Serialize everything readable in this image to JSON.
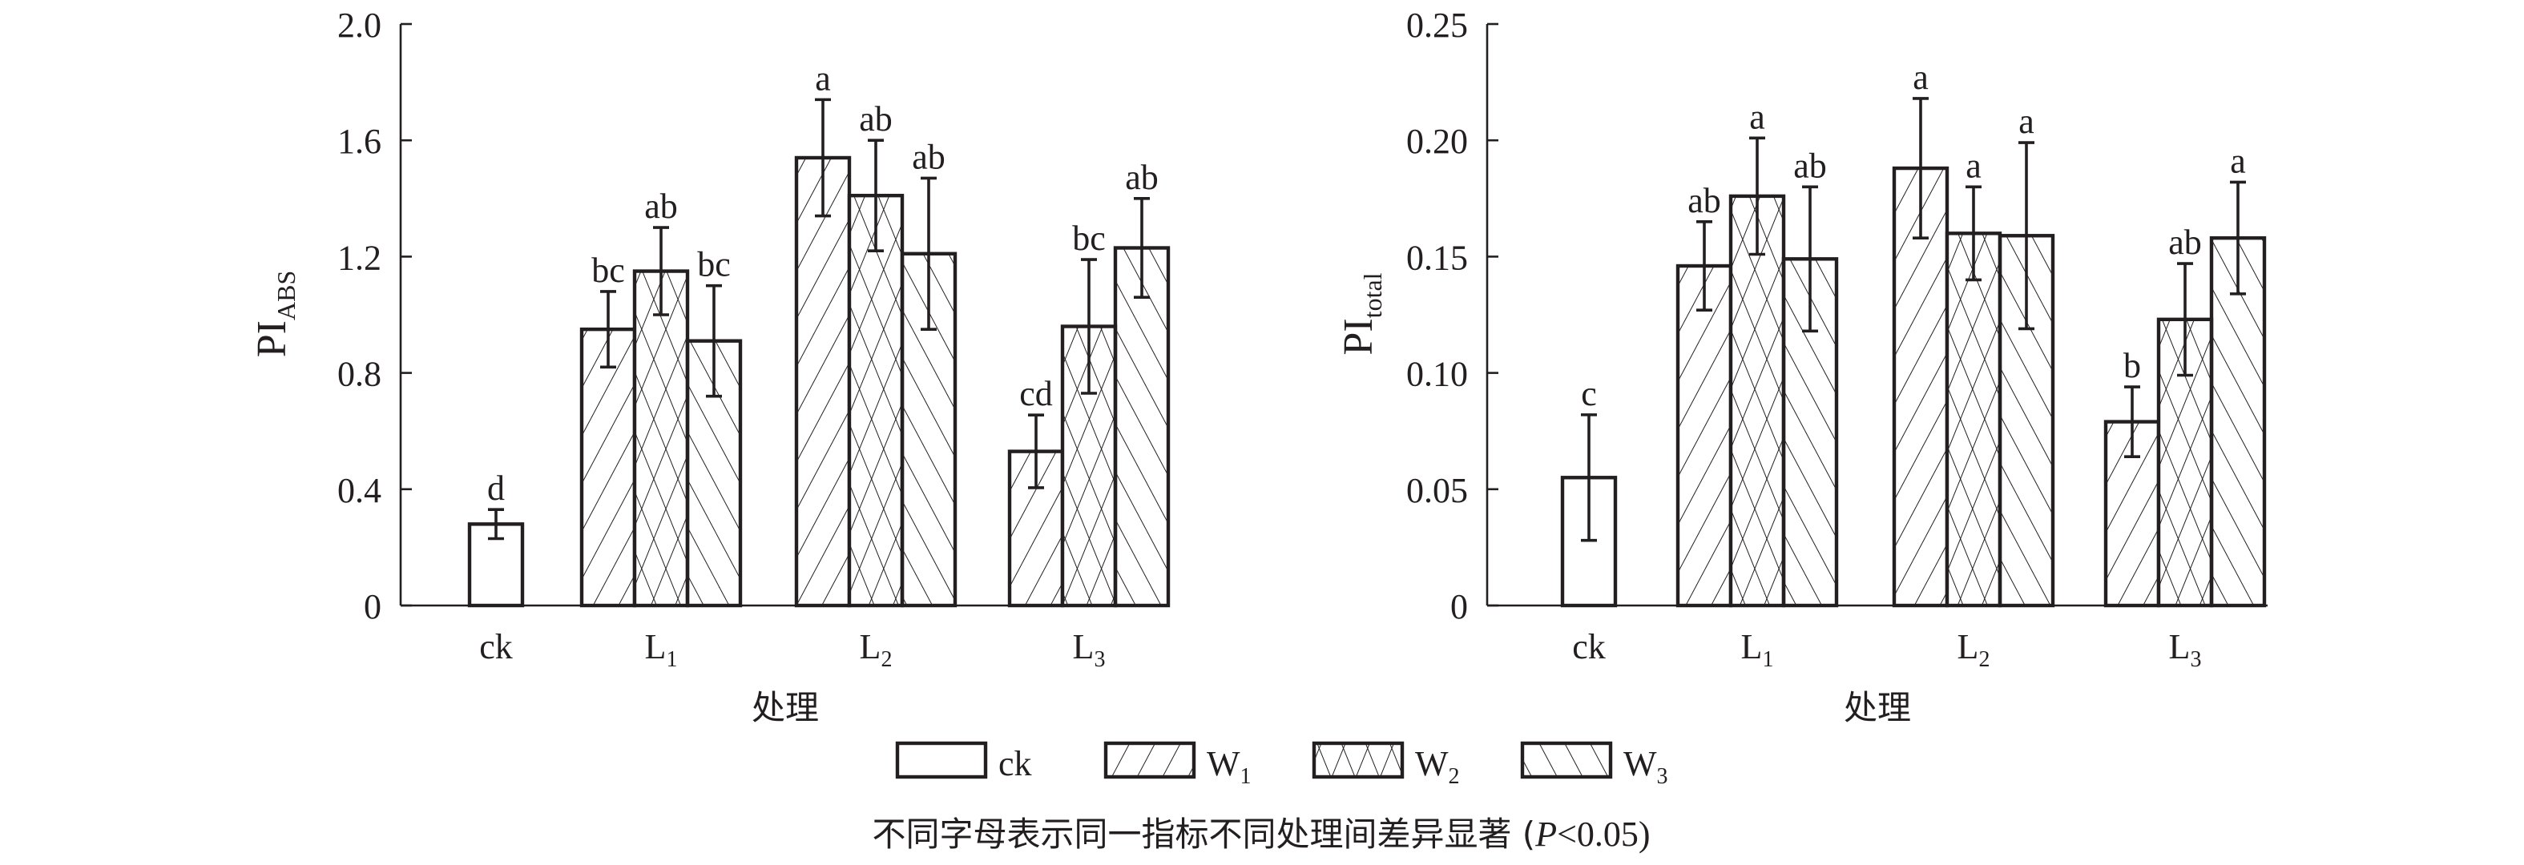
{
  "colors": {
    "ink": "#231f20",
    "background": "#ffffff"
  },
  "chart_data": [
    {
      "type": "bar",
      "ylabel": "PI",
      "ylabel_sub": "ABS",
      "xlabel": "处理",
      "ylim": [
        0,
        2.0
      ],
      "yticks": [
        "0",
        "0.4",
        "0.8",
        "1.2",
        "1.6",
        "2.0"
      ],
      "ytick_values": [
        0,
        0.4,
        0.8,
        1.2,
        1.6,
        2.0
      ],
      "groups": [
        {
          "label": "ck",
          "sub": "",
          "bars": [
            {
              "series": "ck",
              "value": 0.28,
              "error": 0.05,
              "letter": "d"
            }
          ]
        },
        {
          "label": "L",
          "sub": "1",
          "bars": [
            {
              "series": "W1",
              "value": 0.95,
              "error": 0.13,
              "letter": "bc"
            },
            {
              "series": "W2",
              "value": 1.15,
              "error": 0.15,
              "letter": "ab"
            },
            {
              "series": "W3",
              "value": 0.91,
              "error": 0.19,
              "letter": "bc"
            }
          ]
        },
        {
          "label": "L",
          "sub": "2",
          "bars": [
            {
              "series": "W1",
              "value": 1.54,
              "error": 0.2,
              "letter": "a"
            },
            {
              "series": "W2",
              "value": 1.41,
              "error": 0.19,
              "letter": "ab"
            },
            {
              "series": "W3",
              "value": 1.21,
              "error": 0.26,
              "letter": "ab"
            }
          ]
        },
        {
          "label": "L",
          "sub": "3",
          "bars": [
            {
              "series": "W1",
              "value": 0.53,
              "error": 0.125,
              "letter": "cd"
            },
            {
              "series": "W2",
              "value": 0.96,
              "error": 0.23,
              "letter": "bc"
            },
            {
              "series": "W3",
              "value": 1.23,
              "error": 0.17,
              "letter": "ab"
            }
          ]
        }
      ]
    },
    {
      "type": "bar",
      "ylabel": "PI",
      "ylabel_sub": "total",
      "xlabel": "处理",
      "ylim": [
        0,
        0.25
      ],
      "yticks": [
        "0",
        "0.05",
        "0.10",
        "0.15",
        "0.20",
        "0.25"
      ],
      "ytick_values": [
        0,
        0.05,
        0.1,
        0.15,
        0.2,
        0.25
      ],
      "groups": [
        {
          "label": "ck",
          "sub": "",
          "bars": [
            {
              "series": "ck",
              "value": 0.055,
              "error": 0.027,
              "letter": "c"
            }
          ]
        },
        {
          "label": "L",
          "sub": "1",
          "bars": [
            {
              "series": "W1",
              "value": 0.146,
              "error": 0.019,
              "letter": "ab"
            },
            {
              "series": "W2",
              "value": 0.176,
              "error": 0.025,
              "letter": "a"
            },
            {
              "series": "W3",
              "value": 0.149,
              "error": 0.031,
              "letter": "ab"
            }
          ]
        },
        {
          "label": "L",
          "sub": "2",
          "bars": [
            {
              "series": "W1",
              "value": 0.188,
              "error": 0.03,
              "letter": "a"
            },
            {
              "series": "W2",
              "value": 0.16,
              "error": 0.02,
              "letter": "a"
            },
            {
              "series": "W3",
              "value": 0.159,
              "error": 0.04,
              "letter": "a"
            }
          ]
        },
        {
          "label": "L",
          "sub": "3",
          "bars": [
            {
              "series": "W1",
              "value": 0.079,
              "error": 0.015,
              "letter": "b"
            },
            {
              "series": "W2",
              "value": 0.123,
              "error": 0.024,
              "letter": "ab"
            },
            {
              "series": "W3",
              "value": 0.158,
              "error": 0.024,
              "letter": "a"
            }
          ]
        }
      ]
    }
  ],
  "legend": {
    "placement": "bottom-center",
    "items": [
      {
        "series": "ck",
        "label": "ck",
        "sub": "",
        "pattern": "none"
      },
      {
        "series": "W1",
        "label": "W",
        "sub": "1",
        "pattern": "forward-diagonal"
      },
      {
        "series": "W2",
        "label": "W",
        "sub": "2",
        "pattern": "crosshatch"
      },
      {
        "series": "W3",
        "label": "W",
        "sub": "3",
        "pattern": "back-diagonal"
      }
    ]
  },
  "caption": {
    "text_before": "不同字母表示同一指标不同处理间差异显著 (",
    "p": "P",
    "text_after": "<0.05)"
  }
}
